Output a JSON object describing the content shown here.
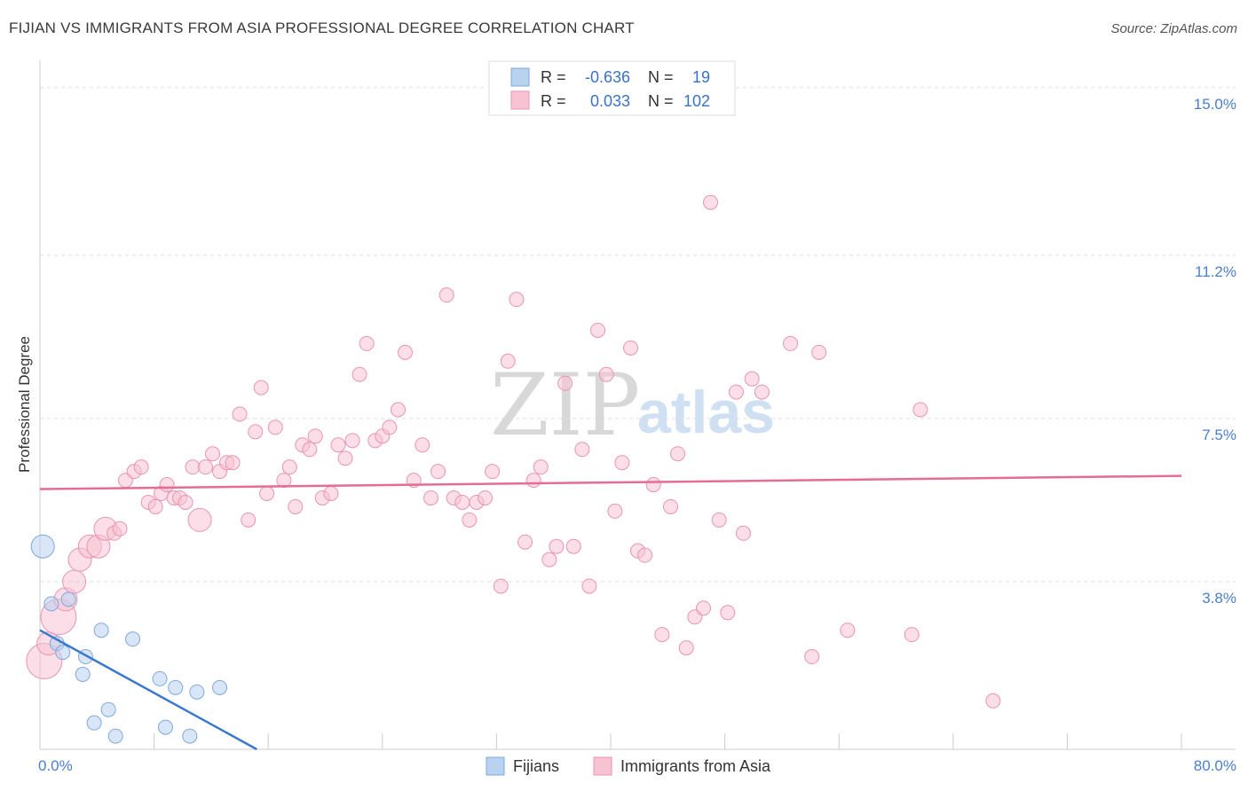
{
  "title": "FIJIAN VS IMMIGRANTS FROM ASIA PROFESSIONAL DEGREE CORRELATION CHART",
  "source": "Source: ZipAtlas.com",
  "watermark": {
    "zip": "ZIP",
    "atlas": "atlas"
  },
  "colors": {
    "fijian_fill": "#b8d2f0",
    "fijian_stroke": "#7fa9dc",
    "fijian_line": "#3a78cf",
    "asia_fill": "#f7c3d3",
    "asia_stroke": "#e995b0",
    "asia_line": "#e46d95",
    "grid": "#dddddd",
    "axis_text": "#4a7fd0"
  },
  "legend": {
    "rows": [
      {
        "r_label": "R = ",
        "r_value": "-0.636",
        "n_label": "N = ",
        "n_value": "19"
      },
      {
        "r_label": "R = ",
        "r_value": "0.033",
        "n_label": "N = ",
        "n_value": "102"
      }
    ]
  },
  "bottom_legend": [
    "Fijians",
    "Immigrants from Asia"
  ],
  "chart_data": {
    "type": "scatter",
    "title": "FIJIAN VS IMMIGRANTS FROM ASIA PROFESSIONAL DEGREE CORRELATION CHART",
    "xlabel": "",
    "ylabel": "Professional Degree",
    "xlim": [
      0,
      80
    ],
    "ylim": [
      0,
      15.4
    ],
    "x_tick_labels": [
      "0.0%",
      "80.0%"
    ],
    "y_ticks": [
      3.8,
      7.5,
      11.2,
      15.0
    ],
    "y_tick_labels": [
      "3.8%",
      "7.5%",
      "11.2%",
      "15.0%"
    ],
    "series": [
      {
        "name": "Fijians",
        "trend": {
          "x0": 0,
          "y0": 2.7,
          "x1": 15.2,
          "y1": 0.0
        },
        "points": [
          [
            0.2,
            4.6,
            2
          ],
          [
            0.8,
            3.3,
            1
          ],
          [
            1.2,
            2.4,
            1
          ],
          [
            1.6,
            2.2,
            1
          ],
          [
            2.0,
            3.4,
            1
          ],
          [
            3.0,
            1.7,
            1
          ],
          [
            3.2,
            2.1,
            1
          ],
          [
            3.8,
            0.6,
            1
          ],
          [
            4.3,
            2.7,
            1
          ],
          [
            4.8,
            0.9,
            1
          ],
          [
            5.3,
            0.3,
            1
          ],
          [
            6.5,
            2.5,
            1
          ],
          [
            8.4,
            1.6,
            1
          ],
          [
            8.8,
            0.5,
            1
          ],
          [
            9.5,
            1.4,
            1
          ],
          [
            10.5,
            0.3,
            1
          ],
          [
            11.0,
            1.3,
            1
          ],
          [
            12.6,
            1.4,
            1
          ]
        ]
      },
      {
        "name": "Immigrants from Asia",
        "trend": {
          "x0": 0,
          "y0": 5.9,
          "x1": 80,
          "y1": 6.2
        },
        "points": [
          [
            0.3,
            2.0,
            3
          ],
          [
            0.6,
            2.4,
            2
          ],
          [
            1.3,
            3.0,
            3
          ],
          [
            1.8,
            3.4,
            2
          ],
          [
            2.4,
            3.8,
            2
          ],
          [
            2.8,
            4.3,
            2
          ],
          [
            3.5,
            4.6,
            2
          ],
          [
            4.1,
            4.6,
            2
          ],
          [
            4.6,
            5.0,
            2
          ],
          [
            5.2,
            4.9,
            1
          ],
          [
            5.6,
            5.0,
            1
          ],
          [
            6.0,
            6.1,
            1
          ],
          [
            6.6,
            6.3,
            1
          ],
          [
            7.1,
            6.4,
            1
          ],
          [
            7.6,
            5.6,
            1
          ],
          [
            8.1,
            5.5,
            1
          ],
          [
            8.5,
            5.8,
            1
          ],
          [
            8.9,
            6.0,
            1
          ],
          [
            9.4,
            5.7,
            1
          ],
          [
            9.8,
            5.7,
            1
          ],
          [
            10.2,
            5.6,
            1
          ],
          [
            10.7,
            6.4,
            1
          ],
          [
            11.2,
            5.2,
            2
          ],
          [
            11.6,
            6.4,
            1
          ],
          [
            12.1,
            6.7,
            1
          ],
          [
            12.6,
            6.3,
            1
          ],
          [
            13.1,
            6.5,
            1
          ],
          [
            13.5,
            6.5,
            1
          ],
          [
            14.0,
            7.6,
            1
          ],
          [
            14.6,
            5.2,
            1
          ],
          [
            15.1,
            7.2,
            1
          ],
          [
            15.5,
            8.2,
            1
          ],
          [
            15.9,
            5.8,
            1
          ],
          [
            16.5,
            7.3,
            1
          ],
          [
            17.1,
            6.1,
            1
          ],
          [
            17.5,
            6.4,
            1
          ],
          [
            17.9,
            5.5,
            1
          ],
          [
            18.4,
            6.9,
            1
          ],
          [
            18.9,
            6.8,
            1
          ],
          [
            19.3,
            7.1,
            1
          ],
          [
            19.8,
            5.7,
            1
          ],
          [
            20.4,
            5.8,
            1
          ],
          [
            20.9,
            6.9,
            1
          ],
          [
            21.4,
            6.6,
            1
          ],
          [
            21.9,
            7.0,
            1
          ],
          [
            22.4,
            8.5,
            1
          ],
          [
            22.9,
            9.2,
            1
          ],
          [
            23.5,
            7.0,
            1
          ],
          [
            24.0,
            7.1,
            1
          ],
          [
            24.5,
            7.3,
            1
          ],
          [
            25.1,
            7.7,
            1
          ],
          [
            25.6,
            9.0,
            1
          ],
          [
            26.2,
            6.1,
            1
          ],
          [
            26.8,
            6.9,
            1
          ],
          [
            27.4,
            5.7,
            1
          ],
          [
            27.9,
            6.3,
            1
          ],
          [
            28.5,
            10.3,
            1
          ],
          [
            29.0,
            5.7,
            1
          ],
          [
            29.6,
            5.6,
            1
          ],
          [
            30.1,
            5.2,
            1
          ],
          [
            30.6,
            5.6,
            1
          ],
          [
            31.2,
            5.7,
            1
          ],
          [
            31.7,
            6.3,
            1
          ],
          [
            32.3,
            3.7,
            1
          ],
          [
            32.8,
            8.8,
            1
          ],
          [
            33.4,
            10.2,
            1
          ],
          [
            34.0,
            4.7,
            1
          ],
          [
            34.6,
            6.1,
            1
          ],
          [
            35.1,
            6.4,
            1
          ],
          [
            35.7,
            4.3,
            1
          ],
          [
            36.2,
            4.6,
            1
          ],
          [
            36.8,
            8.3,
            1
          ],
          [
            37.4,
            4.6,
            1
          ],
          [
            38.0,
            6.8,
            1
          ],
          [
            38.5,
            3.7,
            1
          ],
          [
            39.1,
            9.5,
            1
          ],
          [
            39.7,
            8.5,
            1
          ],
          [
            40.3,
            5.4,
            1
          ],
          [
            40.8,
            6.5,
            1
          ],
          [
            41.4,
            9.1,
            1
          ],
          [
            41.9,
            4.5,
            1
          ],
          [
            42.4,
            4.4,
            1
          ],
          [
            43.0,
            6.0,
            1
          ],
          [
            43.6,
            2.6,
            1
          ],
          [
            44.2,
            5.5,
            1
          ],
          [
            44.7,
            6.7,
            1
          ],
          [
            45.3,
            2.3,
            1
          ],
          [
            45.9,
            3.0,
            1
          ],
          [
            46.5,
            3.2,
            1
          ],
          [
            47.0,
            12.4,
            1
          ],
          [
            47.6,
            5.2,
            1
          ],
          [
            48.2,
            3.1,
            1
          ],
          [
            48.8,
            8.1,
            1
          ],
          [
            49.3,
            4.9,
            1
          ],
          [
            49.9,
            8.4,
            1
          ],
          [
            50.6,
            8.1,
            1
          ],
          [
            52.6,
            9.2,
            1
          ],
          [
            54.1,
            2.1,
            1
          ],
          [
            54.6,
            9.0,
            1
          ],
          [
            56.6,
            2.7,
            1
          ],
          [
            61.1,
            2.6,
            1
          ],
          [
            61.7,
            7.7,
            1
          ],
          [
            66.8,
            1.1,
            1
          ]
        ]
      }
    ]
  }
}
